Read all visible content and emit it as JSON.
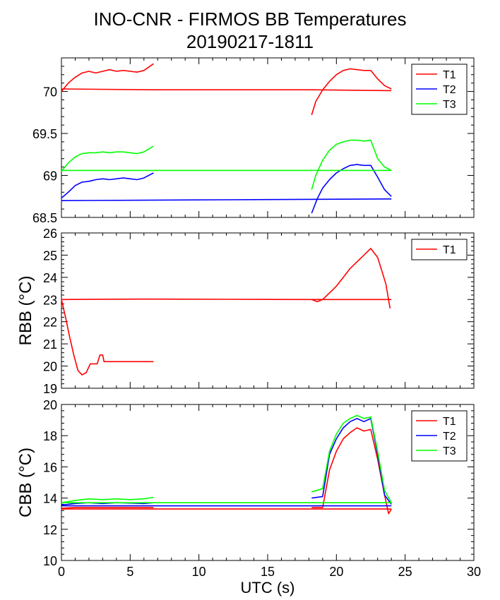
{
  "title": "INO-CNR - FIRMOS BB Temperatures",
  "subtitle": "20190217-1811",
  "chart_data": [
    {
      "type": "line",
      "panel": "top",
      "ylabel": "",
      "xlim": [
        0,
        30
      ],
      "ylim": [
        68.5,
        70.4
      ],
      "yticks": [
        68.5,
        69,
        69.5,
        70
      ],
      "ytick_labels": [
        "68.5",
        "69",
        "69.5",
        "70"
      ],
      "legend": "top-right",
      "series": [
        {
          "name": "T1",
          "color": "#ff0000",
          "segments": [
            {
              "x": [
                0,
                6.7,
                18.2,
                24
              ],
              "y": [
                70.03,
                70.02,
                70.02,
                70.01
              ]
            },
            {
              "x": [
                0,
                0.5,
                1,
                1.5,
                2,
                2.5,
                3,
                3.5,
                4,
                4.5,
                5,
                5.5,
                6,
                6.7
              ],
              "y": [
                70.0,
                70.1,
                70.17,
                70.22,
                70.24,
                70.22,
                70.24,
                70.26,
                70.24,
                70.25,
                70.24,
                70.23,
                70.25,
                70.33
              ]
            },
            {
              "x": [
                18.2,
                18.5,
                19,
                19.5,
                20,
                20.5,
                21,
                21.5,
                22,
                22.5,
                23,
                23.5,
                24
              ],
              "y": [
                69.72,
                69.88,
                70.02,
                70.12,
                70.2,
                70.25,
                70.27,
                70.26,
                70.25,
                70.25,
                70.15,
                70.07,
                70.03
              ]
            }
          ]
        },
        {
          "name": "T2",
          "color": "#0000ff",
          "segments": [
            {
              "x": [
                0,
                12,
                24
              ],
              "y": [
                68.7,
                68.71,
                68.72
              ]
            },
            {
              "x": [
                0,
                0.5,
                1,
                1.5,
                2,
                2.5,
                3,
                3.5,
                4,
                4.5,
                5,
                5.5,
                6,
                6.7
              ],
              "y": [
                68.73,
                68.8,
                68.88,
                68.92,
                68.93,
                68.95,
                68.96,
                68.95,
                68.96,
                68.97,
                68.96,
                68.95,
                68.97,
                69.03
              ]
            },
            {
              "x": [
                18.2,
                18.6,
                19,
                19.5,
                20,
                20.5,
                21,
                21.5,
                22,
                22.5,
                23,
                23.5,
                24
              ],
              "y": [
                68.55,
                68.72,
                68.85,
                68.95,
                69.03,
                69.08,
                69.12,
                69.13,
                69.12,
                69.12,
                68.98,
                68.83,
                68.75
              ]
            }
          ]
        },
        {
          "name": "T3",
          "color": "#00ff00",
          "segments": [
            {
              "x": [
                0,
                6.7,
                18.2,
                24
              ],
              "y": [
                69.06,
                69.06,
                69.06,
                69.06
              ]
            },
            {
              "x": [
                0,
                0.5,
                1,
                1.5,
                2,
                2.5,
                3,
                3.5,
                4,
                4.5,
                5,
                5.5,
                6,
                6.7
              ],
              "y": [
                69.05,
                69.15,
                69.22,
                69.26,
                69.27,
                69.27,
                69.28,
                69.27,
                69.28,
                69.28,
                69.27,
                69.26,
                69.28,
                69.35
              ]
            },
            {
              "x": [
                18.2,
                18.5,
                19,
                19.5,
                20,
                20.5,
                21,
                21.5,
                22,
                22.5,
                23,
                23.5,
                24
              ],
              "y": [
                68.83,
                69.0,
                69.18,
                69.3,
                69.37,
                69.4,
                69.42,
                69.42,
                69.41,
                69.42,
                69.2,
                69.1,
                69.06
              ]
            }
          ]
        }
      ]
    },
    {
      "type": "line",
      "panel": "middle",
      "ylabel": "RBB (°C)",
      "xlim": [
        0,
        30
      ],
      "ylim": [
        19,
        26
      ],
      "yticks": [
        19,
        20,
        21,
        22,
        23,
        24,
        25,
        26
      ],
      "ytick_labels": [
        "19",
        "20",
        "21",
        "22",
        "23",
        "24",
        "25",
        "26"
      ],
      "legend": "top-right",
      "series": [
        {
          "name": "T1",
          "color": "#ff0000",
          "segments": [
            {
              "x": [
                0,
                6,
                12,
                18,
                24
              ],
              "y": [
                23.0,
                23.02,
                23.01,
                23.0,
                23.0
              ]
            },
            {
              "x": [
                0,
                0.3,
                0.6,
                0.9,
                1.2,
                1.5,
                1.8,
                2.1,
                2.4,
                2.6,
                2.8,
                3.0,
                3.1,
                3.5,
                4.5,
                5.5,
                6.7
              ],
              "y": [
                23.0,
                22.2,
                21.3,
                20.5,
                19.8,
                19.6,
                19.7,
                20.1,
                20.1,
                20.1,
                20.5,
                20.5,
                20.2,
                20.2,
                20.2,
                20.2,
                20.2
              ]
            },
            {
              "x": [
                18.2,
                18.6,
                19,
                19.5,
                20,
                20.5,
                21,
                21.5,
                22,
                22.5,
                23,
                23.3,
                23.6,
                23.9
              ],
              "y": [
                23.0,
                22.9,
                23.0,
                23.3,
                23.6,
                24.0,
                24.4,
                24.7,
                25.0,
                25.3,
                24.9,
                24.3,
                23.7,
                22.6
              ]
            }
          ]
        }
      ]
    },
    {
      "type": "line",
      "panel": "bottom",
      "ylabel": "CBB (°C)",
      "xlabel": "UTC (s)",
      "xlim": [
        0,
        30
      ],
      "ylim": [
        10,
        20
      ],
      "xticks": [
        0,
        5,
        10,
        15,
        20,
        25,
        30
      ],
      "xtick_labels": [
        "0",
        "5",
        "10",
        "15",
        "20",
        "25",
        "30"
      ],
      "yticks": [
        10,
        12,
        14,
        16,
        18,
        20
      ],
      "ytick_labels": [
        "10",
        "12",
        "14",
        "16",
        "18",
        "20"
      ],
      "legend": "top-right",
      "series": [
        {
          "name": "T1",
          "color": "#ff0000",
          "segments": [
            {
              "x": [
                0,
                24
              ],
              "y": [
                13.3,
                13.3
              ]
            },
            {
              "x": [
                0,
                1,
                2,
                3,
                4,
                5,
                6,
                6.7
              ],
              "y": [
                13.35,
                13.4,
                13.4,
                13.4,
                13.4,
                13.4,
                13.4,
                13.4
              ]
            },
            {
              "x": [
                18.2,
                19,
                19.5,
                20,
                20.5,
                21,
                21.5,
                22,
                22.5,
                23,
                23.5,
                23.8,
                24
              ],
              "y": [
                13.4,
                13.4,
                15.8,
                17.0,
                17.8,
                18.2,
                18.5,
                18.3,
                18.4,
                16.5,
                14.2,
                13.0,
                13.3
              ]
            }
          ]
        },
        {
          "name": "T2",
          "color": "#0000ff",
          "segments": [
            {
              "x": [
                0,
                24
              ],
              "y": [
                13.5,
                13.5
              ]
            },
            {
              "x": [
                0,
                1,
                2,
                3,
                4,
                5,
                6,
                6.7
              ],
              "y": [
                13.55,
                13.65,
                13.7,
                13.65,
                13.7,
                13.68,
                13.65,
                13.7
              ]
            },
            {
              "x": [
                18.2,
                19,
                19.5,
                20,
                20.5,
                21,
                21.5,
                22,
                22.5,
                23,
                23.5,
                24
              ],
              "y": [
                14.0,
                14.1,
                16.8,
                17.8,
                18.5,
                18.9,
                19.1,
                18.9,
                19.1,
                16.8,
                14.2,
                13.6
              ]
            }
          ]
        },
        {
          "name": "T3",
          "color": "#00ff00",
          "segments": [
            {
              "x": [
                0,
                24
              ],
              "y": [
                13.7,
                13.7
              ]
            },
            {
              "x": [
                0,
                1,
                2,
                3,
                4,
                5,
                6,
                6.7
              ],
              "y": [
                13.7,
                13.85,
                13.95,
                13.9,
                13.95,
                13.9,
                13.95,
                14.05
              ]
            },
            {
              "x": [
                18.2,
                19,
                19.5,
                20,
                20.5,
                21,
                21.5,
                22,
                22.5,
                23,
                23.5,
                24
              ],
              "y": [
                14.4,
                14.6,
                17.0,
                18.1,
                18.8,
                19.1,
                19.3,
                19.1,
                19.2,
                17.0,
                14.5,
                13.7
              ]
            }
          ]
        }
      ]
    }
  ]
}
